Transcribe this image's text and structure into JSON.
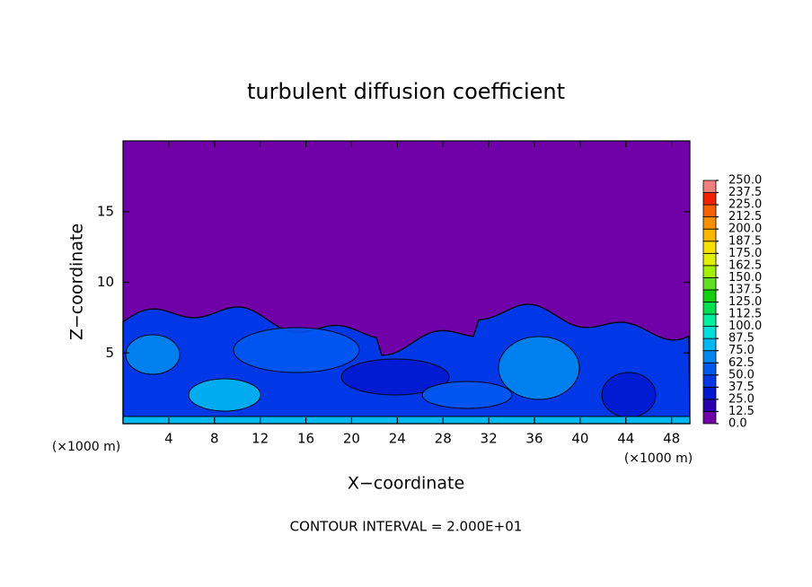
{
  "chart_data": {
    "type": "contour",
    "title": "turbulent diffusion coefficient",
    "x_label": "X−coordinate",
    "y_label": "Z−coordinate",
    "x_unit": "(×1000 m)",
    "footnote": "CONTOUR INTERVAL = 2.000E+01",
    "xlim": [
      0,
      49.6
    ],
    "xticks": [
      4,
      8,
      12,
      16,
      20,
      24,
      28,
      32,
      36,
      40,
      44,
      48
    ],
    "ylim": [
      0,
      20
    ],
    "yticks": [
      5,
      10,
      15
    ],
    "colorbar": {
      "ticks": [
        {
          "value": 0,
          "label": "0.0"
        },
        {
          "value": 12.5,
          "label": "12.5"
        },
        {
          "value": 25,
          "label": "25.0"
        },
        {
          "value": 37.5,
          "label": "37.5"
        },
        {
          "value": 50,
          "label": "50.0"
        },
        {
          "value": 62.5,
          "label": "62.5"
        },
        {
          "value": 75,
          "label": "75.0"
        },
        {
          "value": 87.5,
          "label": "87.5"
        },
        {
          "value": 100,
          "label": "100.0"
        },
        {
          "value": 112.5,
          "label": "112.5"
        },
        {
          "value": 125,
          "label": "125.0"
        },
        {
          "value": 137.5,
          "label": "137.5"
        },
        {
          "value": 150,
          "label": "150.0"
        },
        {
          "value": 162.5,
          "label": "162.5"
        },
        {
          "value": 175,
          "label": "175.0"
        },
        {
          "value": 187.5,
          "label": "187.5"
        },
        {
          "value": 200,
          "label": "200.0"
        },
        {
          "value": 212.5,
          "label": "212.5"
        },
        {
          "value": 225,
          "label": "225.0"
        },
        {
          "value": 237.5,
          "label": "237.5"
        },
        {
          "value": 250,
          "label": "250.0"
        }
      ],
      "colors": [
        "#7000a8",
        "#2800b0",
        "#0018d0",
        "#0038e8",
        "#0058f0",
        "#0088f0",
        "#00b8f0",
        "#00e0d8",
        "#00f0a0",
        "#00e050",
        "#10d010",
        "#60e020",
        "#a0f000",
        "#e0f000",
        "#f8e000",
        "#f8b800",
        "#f89000",
        "#f86000",
        "#f02000",
        "#f08080"
      ]
    }
  }
}
